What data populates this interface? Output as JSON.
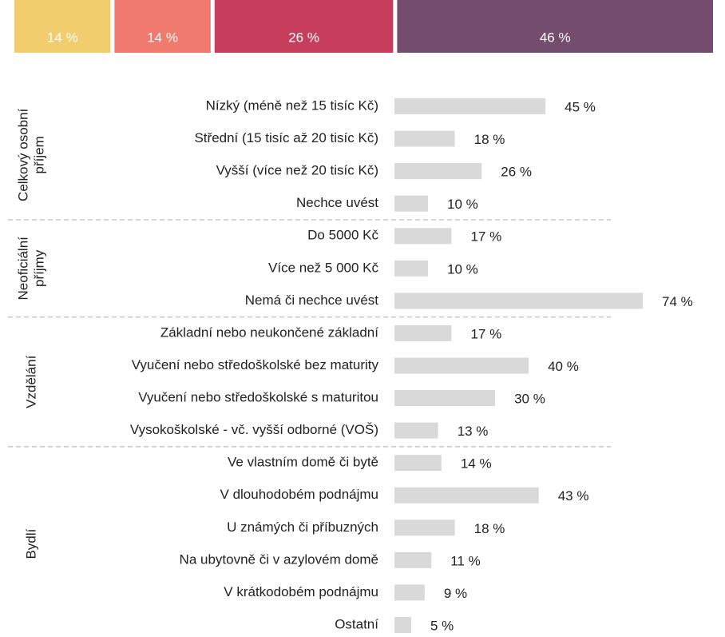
{
  "chart_data": [
    {
      "type": "stacked_bar",
      "values": [
        14,
        14,
        26,
        46
      ],
      "value_labels": [
        "14 %",
        "14 %",
        "26 %",
        "46 %"
      ],
      "colors": [
        "#f2cd6e",
        "#f07a6e",
        "#c63e5c",
        "#744c6e"
      ]
    },
    {
      "type": "hbar",
      "color": "#d9d9d9",
      "groups": [
        {
          "label_lines": [
            "Celkový osobní",
            "příjem"
          ],
          "categories": [
            "Nízký (méně než 15 tisíc Kč)",
            "Střední (15 tisíc až 20 tisíc Kč)",
            "Vyšší (více než 20 tisíc Kč)",
            "Nechce uvést"
          ],
          "values": [
            45,
            18,
            26,
            10
          ],
          "value_labels": [
            "45 %",
            "18 %",
            "26 %",
            "10 %"
          ]
        },
        {
          "label_lines": [
            "Neoficiální",
            "příjmy"
          ],
          "categories": [
            "Do 5000 Kč",
            "Více než 5 000 Kč",
            "Nemá či nechce uvést"
          ],
          "values": [
            17,
            10,
            74
          ],
          "value_labels": [
            "17 %",
            "10 %",
            "74 %"
          ]
        },
        {
          "label_lines": [
            "Vzdělání"
          ],
          "categories": [
            "Základní nebo neukončené základní",
            "Vyučení nebo středoškolské bez maturity",
            "Vyučení nebo středoškolské s maturitou",
            "Vysokoškolské - vč. vyšší odborné (VOŠ)"
          ],
          "values": [
            17,
            40,
            30,
            13
          ],
          "value_labels": [
            "17 %",
            "40 %",
            "30 %",
            "13 %"
          ]
        },
        {
          "label_lines": [
            "Bydlí"
          ],
          "categories": [
            "Ve vlastním domě či bytě",
            "V dlouhodobém podnájmu",
            "U známých či příbuzných",
            "Na ubytovně či v azylovém domě",
            "V krátkodobém podnájmu",
            "Ostatní"
          ],
          "values": [
            14,
            43,
            18,
            11,
            9,
            5
          ],
          "value_labels": [
            "14 %",
            "43 %",
            "18 %",
            "11 %",
            "9 %",
            "5 %"
          ]
        }
      ]
    }
  ]
}
